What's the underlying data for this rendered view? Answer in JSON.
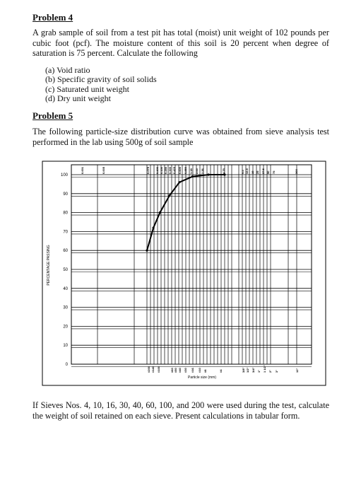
{
  "problem4": {
    "heading": "Problem 4",
    "text": "A grab sample of soil from a test pit has total (moist) unit weight of 102 pounds per cubic foot (pcf). The moisture content of this soil is 20 percent when degree of saturation is 75 percent. Calculate the following",
    "items": [
      "(a) Void ratio",
      "(b) Specific gravity of soil solids",
      "(c) Saturated unit weight",
      "(d) Dry unit weight"
    ]
  },
  "problem5": {
    "heading": "Problem 5",
    "text": "The following particle-size distribution curve was obtained from sieve analysis test performed in the lab using 500g of soil sample",
    "question": "If Sieves Nos. 4, 10, 16, 30, 40, 60, 100, and 200 were used during the test, calculate the weight of soil retained on each sieve. Present calculations in tabular form."
  },
  "chart_data": {
    "type": "line",
    "xlabel": "Particle size (mm)",
    "ylabel": "PERCENTAGE PASSING",
    "x_scale": "log",
    "ylim": [
      0,
      100
    ],
    "yticks": [
      100,
      90,
      80,
      70,
      60,
      50,
      40,
      30,
      20,
      10,
      0
    ],
    "top_labels": [
      "0.001",
      "0.005",
      "0.075",
      "0.106",
      "0.150",
      "0.250",
      "0.300",
      "0.425",
      "0.600",
      "0.850",
      "1.18",
      "2.00",
      "2.36",
      "4.75",
      "9.5",
      "12.5",
      "19",
      "25",
      "37.5",
      "50",
      "75",
      "300"
    ],
    "bottom_labels": [
      "#200",
      "#140",
      "#100",
      "#60",
      "#50",
      "#40",
      "#30",
      "#16",
      "#10",
      "#8",
      "#4",
      "3/8\"",
      "1/2\"",
      "3/4\"",
      "1\"",
      "1 1/2\"",
      "2\"",
      "3\"",
      "12\""
    ],
    "series": [
      {
        "x": [
          0.075,
          0.106,
          0.15,
          0.25,
          0.425,
          0.85,
          2.0,
          4.75
        ],
        "y": [
          60,
          72,
          80,
          89,
          96,
          99,
          100,
          100
        ]
      }
    ]
  }
}
